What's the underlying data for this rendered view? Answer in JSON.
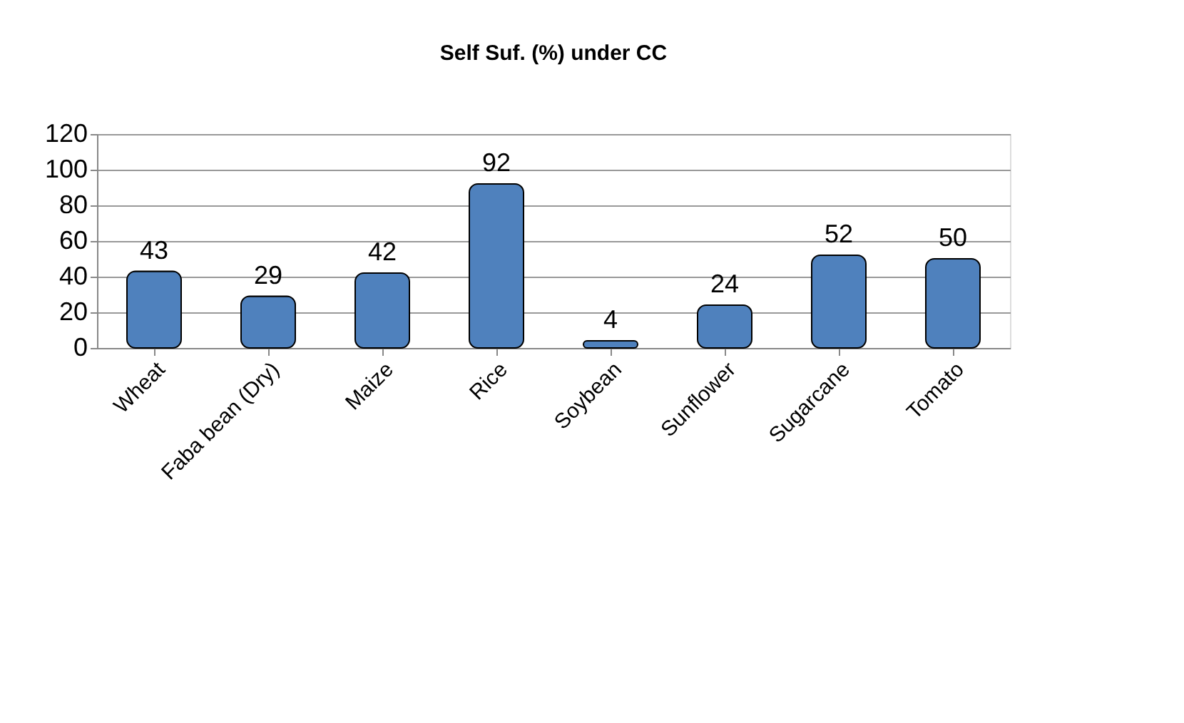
{
  "chart_data": {
    "type": "bar",
    "title": "Self Suf. (%) under CC",
    "categories": [
      "Wheat",
      "Faba bean (Dry)",
      "Maize",
      "Rice",
      "Soybean",
      "Sunflower",
      "Sugarcane",
      "Tomato"
    ],
    "values": [
      43,
      29,
      42,
      92,
      4,
      24,
      52,
      50
    ],
    "color": "#4f81bd",
    "ylim": [
      0,
      120
    ],
    "yticks": [
      0,
      20,
      40,
      60,
      80,
      100,
      120
    ],
    "grid": "y",
    "data_labels": true
  }
}
